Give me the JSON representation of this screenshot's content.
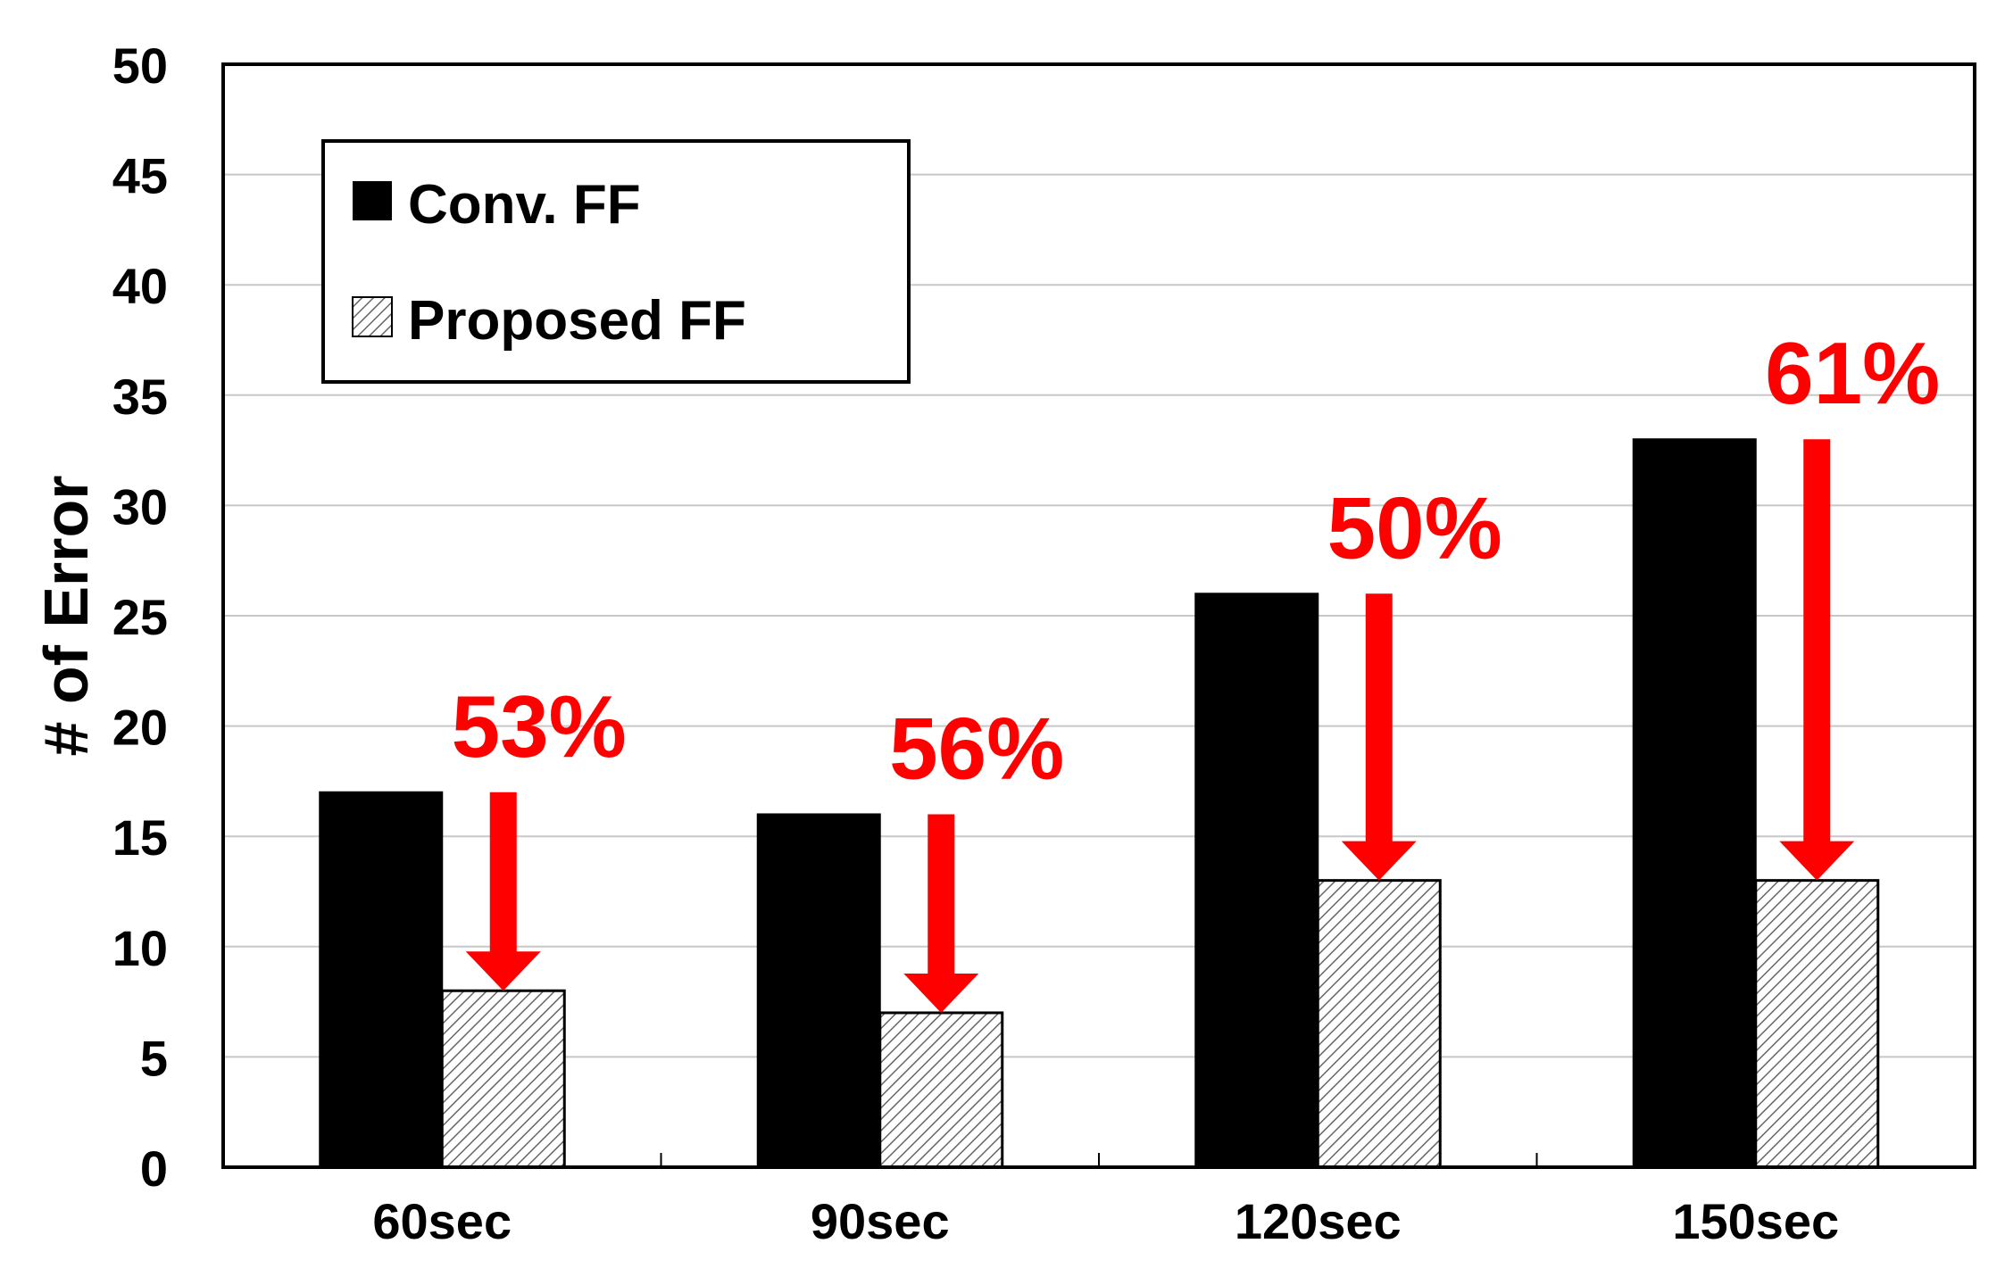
{
  "chart_data": {
    "type": "bar",
    "title": "",
    "xlabel": "",
    "ylabel": "# of Error",
    "ylim": [
      0,
      50
    ],
    "yticks": [
      0,
      5,
      10,
      15,
      20,
      25,
      30,
      35,
      40,
      45,
      50
    ],
    "categories": [
      "60sec",
      "90sec",
      "120sec",
      "150sec"
    ],
    "series": [
      {
        "name": "Conv. FF",
        "values": [
          17,
          16,
          26,
          33
        ],
        "color": "#000000",
        "pattern": "solid"
      },
      {
        "name": "Proposed FF",
        "values": [
          8,
          7,
          13,
          13
        ],
        "color": "#ffffff",
        "pattern": "diagonal-hatch"
      }
    ],
    "annotations": [
      "53%",
      "56%",
      "50%",
      "61%"
    ],
    "annotation_color": "#ff0000",
    "grid": "horizontal",
    "legend_position": "top-left"
  }
}
